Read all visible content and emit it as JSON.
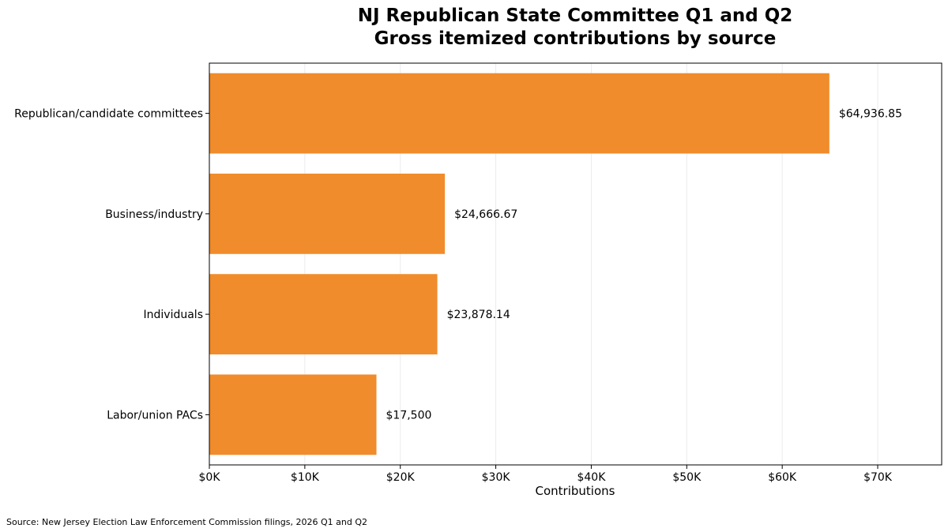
{
  "chart_data": {
    "type": "bar",
    "orientation": "horizontal",
    "title": "NJ Republican State Committee Q1 and Q2\nGross itemized contributions by source",
    "xlabel": "Contributions",
    "ylabel": "",
    "categories": [
      "Republican/candidate committees",
      "Business/industry",
      "Individuals",
      "Labor/union PACs"
    ],
    "values": [
      64936.85,
      24666.67,
      23878.14,
      17500
    ],
    "data_labels": [
      "$64,936.85",
      "$24,666.67",
      "$23,878.14",
      "$17,500"
    ],
    "xlim": [
      0,
      76700
    ],
    "xticks": [
      0,
      10000,
      20000,
      30000,
      40000,
      50000,
      60000,
      70000
    ],
    "xtick_labels": [
      "$0K",
      "$10K",
      "$20K",
      "$30K",
      "$40K",
      "$50K",
      "$60K",
      "$70K"
    ],
    "grid": "vertical",
    "legend": "none",
    "bar_color": "#F08C2B",
    "grid_color": "#EBEBEB"
  },
  "source_note": "Source: New Jersey Election Law Enforcement Commission filings, 2026 Q1 and Q2"
}
